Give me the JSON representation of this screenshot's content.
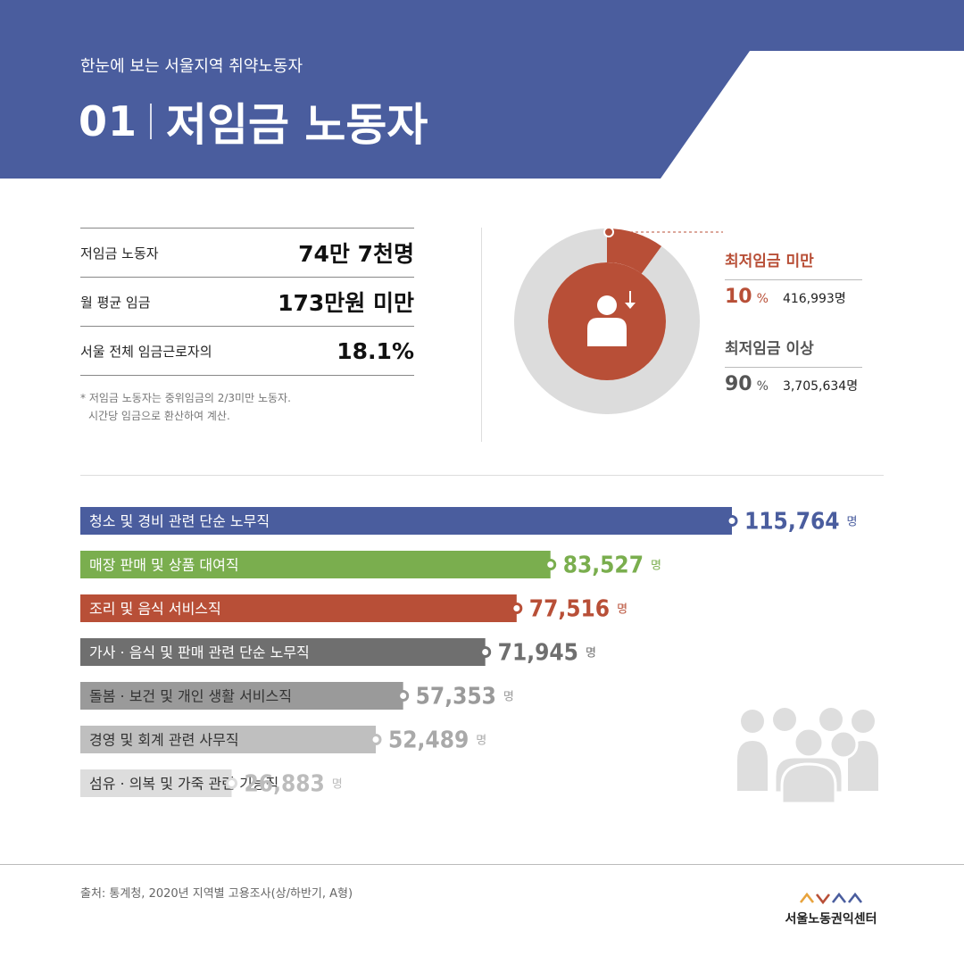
{
  "header": {
    "kicker": "한눈에 보는 서울지역 취약노동자",
    "number": "01",
    "title": "저임금 노동자",
    "color": "#4a5d9e"
  },
  "stats": [
    {
      "label": "저임금 노동자",
      "value": "74만 7천명"
    },
    {
      "label": "월 평균 임금",
      "value": "173만원 미만"
    },
    {
      "label": "서울 전체 임금근로자의",
      "value": "18.1%"
    }
  ],
  "note": {
    "line1": "* 저임금 노동자는 중위임금의 2/3미만 노동자.",
    "line2": "시간당 임금으로 환산하여 계산."
  },
  "donut": {
    "icon": "person-down-arrow-icon",
    "segments": [
      {
        "label": "최저임금 미만",
        "percent": 10,
        "count": "416,993명",
        "color": "#b84f37"
      },
      {
        "label": "최저임금 이상",
        "percent": 90,
        "count": "3,705,634명",
        "color": "#dcdcdc"
      }
    ],
    "pct_unit": "%"
  },
  "chart_data": {
    "type": "bar",
    "orientation": "horizontal",
    "unit": "명",
    "categories": [
      "청소 및 경비 관련 단순 노무직",
      "매장 판매 및 상품 대여직",
      "조리 및 음식 서비스직",
      "가사 · 음식 및 판매 관련 단순 노무직",
      "돌봄 · 보건 및 개인 생활 서비스직",
      "경영 및 회계 관련 사무직",
      "섬유 · 의복 및 가죽 관련 기능직"
    ],
    "values": [
      115764,
      83527,
      77516,
      71945,
      57353,
      52489,
      26883
    ],
    "value_labels": [
      "115,764",
      "83,527",
      "77,516",
      "71,945",
      "57,353",
      "52,489",
      "26,883"
    ],
    "colors": [
      "#4a5d9e",
      "#7aae4e",
      "#b84f37",
      "#6f6f6f",
      "#9a9a9a",
      "#bfbfbf",
      "#dddddd"
    ],
    "label_colors": [
      "#4a5d9e",
      "#7aae4e",
      "#b84f37",
      "#6f6f6f",
      "#9a9a9a",
      "#a9a9a9",
      "#bcbcbc"
    ],
    "text_colors": [
      "#ffffff",
      "#ffffff",
      "#ffffff",
      "#ffffff",
      "#333333",
      "#333333",
      "#333333"
    ]
  },
  "decor_icon": "people-group-icon",
  "footer": {
    "source": "출처: 통계청, 2020년 지역별 고용조사(상/하반기, A형)",
    "logo_text": "서울노동권익센터",
    "logo_colors": [
      "#e8a33c",
      "#b84f37",
      "#4a5d9e",
      "#4a5d9e"
    ]
  }
}
